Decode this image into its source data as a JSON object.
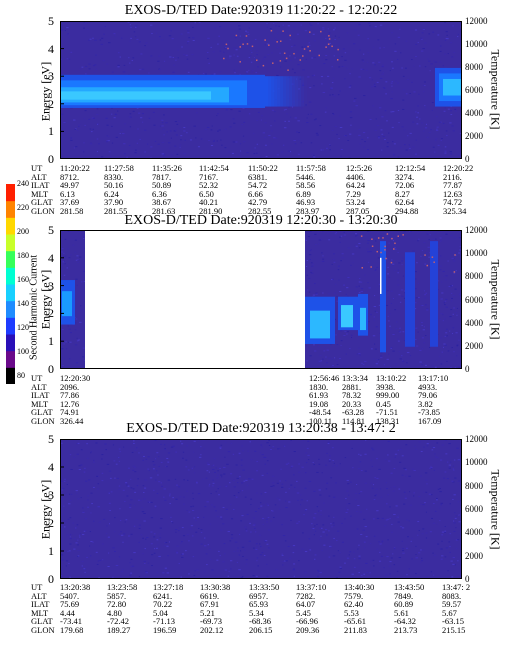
{
  "panels": [
    {
      "title": "EXOS-D/TED   Date:920319   11:20:22 - 12:20:22",
      "ylabel": "Energy [eV]",
      "ylabel_right": "Temperature [K]",
      "yticks": [
        "5",
        "4",
        "3",
        "2",
        "1",
        "0"
      ],
      "yticks_right": [
        "12000",
        "10000",
        "8000",
        "6000",
        "4000",
        "2000",
        "0"
      ],
      "orbit": {
        "labels": [
          "UT",
          "ALT",
          "ILAT",
          "MLT",
          "GLAT",
          "GLON"
        ],
        "columns": [
          [
            "11:20:22",
            "8712.",
            "49.97",
            "6.13",
            "37.69",
            "281.58"
          ],
          [
            "11:27:58",
            "8330.",
            "50.16",
            "6.24",
            "37.90",
            "281.55"
          ],
          [
            "11:35:26",
            "7817.",
            "50.89",
            "6.36",
            "38.67",
            "281.63"
          ],
          [
            "11:42:54",
            "7167.",
            "52.32",
            "6.50",
            "40.21",
            "281.90"
          ],
          [
            "11:50:22",
            "6381.",
            "54.72",
            "6.66",
            "42.79",
            "282.55"
          ],
          [
            "11:57:58",
            "5446.",
            "58.56",
            "6.89",
            "46.93",
            "283.97"
          ],
          [
            "12:5:26",
            "4406.",
            "64.24",
            "7.29",
            "53.24",
            "287.05"
          ],
          [
            "12:12:54",
            "3274.",
            "72.06",
            "8.27",
            "62.64",
            "294.88"
          ],
          [
            "12:20:22",
            "2116.",
            "77.87",
            "12.63",
            "74.72",
            "325.34"
          ]
        ]
      }
    },
    {
      "title": "EXOS-D/TED   Date:920319   12:20:30 - 13:20:30",
      "ylabel": "Energy [eV]",
      "ylabel_right": "Temperature [K]",
      "yticks": [
        "5",
        "4",
        "3",
        "2",
        "1",
        "0"
      ],
      "yticks_right": [
        "12000",
        "10000",
        "8000",
        "6000",
        "4000",
        "2000",
        "0"
      ],
      "orbit": {
        "labels": [
          "UT",
          "ALT",
          "ILAT",
          "MLT",
          "GLAT",
          "GLON"
        ],
        "columns": [
          [
            "12:20:30",
            "2096.",
            "77.86",
            "12.76",
            "74.91",
            "326.44"
          ],
          [
            "12:56:46",
            "1830.",
            "61.93",
            "19.08",
            "-48.54",
            "100.11"
          ],
          [
            "13:3:34",
            "2881.",
            "78.32",
            "20.33",
            "-63.28",
            "114.81"
          ],
          [
            "13:10:22",
            "3938.",
            "999.00",
            "0.45",
            "-71.51",
            "138.31"
          ],
          [
            "13:17:10",
            "4933.",
            "79.06",
            "3.82",
            "-73.85",
            "167.09"
          ]
        ]
      }
    },
    {
      "title": "EXOS-D/TED   Date:920319   13:20:38 - 13:47: 2",
      "ylabel": "Energy [eV]",
      "ylabel_right": "Temperature [K]",
      "yticks": [
        "5",
        "4",
        "3",
        "2",
        "1",
        "0"
      ],
      "yticks_right": [
        "12000",
        "10000",
        "8000",
        "6000",
        "4000",
        "2000",
        "0"
      ],
      "orbit": {
        "labels": [
          "UT",
          "ALT",
          "ILAT",
          "MLT",
          "GLAT",
          "GLON"
        ],
        "columns": [
          [
            "13:20:38",
            "5407.",
            "75.69",
            "4.44",
            "-73.41",
            "179.68"
          ],
          [
            "13:23:58",
            "5857.",
            "72.80",
            "4.80",
            "-72.42",
            "189.27"
          ],
          [
            "13:27:18",
            "6241.",
            "70.22",
            "5.04",
            "-71.13",
            "196.59"
          ],
          [
            "13:30:38",
            "6619.",
            "67.91",
            "5.21",
            "-69.73",
            "202.12"
          ],
          [
            "13:33:50",
            "6957.",
            "65.93",
            "5.34",
            "-68.36",
            "206.15"
          ],
          [
            "13:37:10",
            "7282.",
            "64.07",
            "5.45",
            "-66.96",
            "209.36"
          ],
          [
            "13:40:30",
            "7579.",
            "62.40",
            "5.53",
            "-65.61",
            "211.83"
          ],
          [
            "13:43:50",
            "7849.",
            "60.89",
            "5.61",
            "-64.32",
            "213.73"
          ],
          [
            "13:47: 2",
            "8083.",
            "59.57",
            "5.67",
            "-63.15",
            "215.15"
          ]
        ]
      }
    }
  ],
  "colorbar": {
    "label": "Second Harmonic Current",
    "ticks": [
      "240",
      "220",
      "200",
      "180",
      "160",
      "140",
      "120",
      "100",
      "80"
    ],
    "colors": [
      "#000000",
      "#6a0a8a",
      "#2a10b8",
      "#1e3cff",
      "#1f8cff",
      "#18d0ff",
      "#00ffd2",
      "#36ff5a",
      "#c8ff2a",
      "#ffd800",
      "#ff8400",
      "#ff2000"
    ]
  },
  "chart_data": [
    {
      "type": "heatmap",
      "title": "EXOS-D/TED   Date:920319   11:20:22 - 12:20:22",
      "ylabel": "Energy [eV]",
      "ylabel_right": "Temperature [K]",
      "ylim": [
        0,
        5
      ],
      "ylim_right": [
        0,
        12000
      ],
      "x_ut": [
        "11:20:22",
        "11:27:58",
        "11:35:26",
        "11:42:54",
        "11:50:22",
        "11:57:58",
        "12:5:26",
        "12:12:54",
        "12:20:22"
      ],
      "features": [
        {
          "name": "band",
          "ut_start": "11:20:22",
          "ut_end": "11:57:58",
          "energy_low": 1.9,
          "energy_high": 3.0,
          "peak_energy": 2.3
        },
        {
          "name": "band",
          "ut_start": "12:14:00",
          "ut_end": "12:20:22",
          "energy_low": 1.9,
          "energy_high": 3.3,
          "peak_energy": 2.6
        }
      ],
      "colorscale": [
        80,
        240
      ]
    },
    {
      "type": "heatmap",
      "title": "EXOS-D/TED   Date:920319   12:20:30 - 13:20:30",
      "ylabel": "Energy [eV]",
      "ylabel_right": "Temperature [K]",
      "ylim": [
        0,
        5
      ],
      "ylim_right": [
        0,
        12000
      ],
      "x_ut": [
        "12:20:30",
        "12:56:46",
        "13:3:34",
        "13:10:22",
        "13:17:10"
      ],
      "data_gap": [
        "12:22:00",
        "12:56:46"
      ],
      "colorscale": [
        80,
        240
      ]
    },
    {
      "type": "heatmap",
      "title": "EXOS-D/TED   Date:920319   13:20:38 - 13:47: 2",
      "ylabel": "Energy [eV]",
      "ylabel_right": "Temperature [K]",
      "ylim": [
        0,
        5
      ],
      "ylim_right": [
        0,
        12000
      ],
      "x_ut": [
        "13:20:38",
        "13:23:58",
        "13:27:18",
        "13:30:38",
        "13:33:50",
        "13:37:10",
        "13:40:30",
        "13:43:50",
        "13:47: 2"
      ],
      "colorscale": [
        80,
        240
      ]
    }
  ]
}
